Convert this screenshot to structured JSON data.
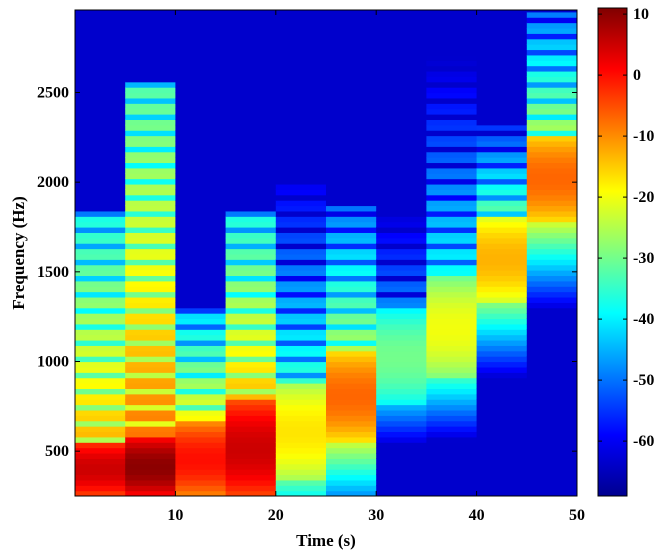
{
  "chart_data": {
    "type": "heatmap",
    "title": "",
    "xlabel": "Time (s)",
    "ylabel": "Frequency (Hz)",
    "xlim": [
      0,
      50
    ],
    "ylim": [
      250,
      2960
    ],
    "x_ticks": [
      "10",
      "20",
      "30",
      "40",
      "50"
    ],
    "x_tick_values": [
      10,
      20,
      30,
      40,
      50
    ],
    "y_ticks": [
      "500",
      "1000",
      "1500",
      "2000",
      "2500"
    ],
    "y_tick_values": [
      500,
      1000,
      1500,
      2000,
      2500
    ],
    "colorbar": {
      "range": [
        -69,
        11
      ],
      "ticks": [
        "10",
        "0",
        "-10",
        "-20",
        "-30",
        "-40",
        "-50",
        "-60"
      ],
      "tick_values": [
        10,
        0,
        -10,
        -20,
        -30,
        -40,
        -50,
        -60
      ],
      "colormap": "jet"
    },
    "background_level_db": -63,
    "segments": [
      {
        "t_start": 0,
        "t_end": 5,
        "hot_band": [
          250,
          560
        ],
        "peak_db": 5,
        "partials_up_to": 1850
      },
      {
        "t_start": 5,
        "t_end": 10,
        "hot_band": [
          250,
          580
        ],
        "peak_db": 10,
        "partials_up_to": 2560
      },
      {
        "t_start": 10,
        "t_end": 15,
        "hot_band": [
          250,
          660
        ],
        "peak_db": 0,
        "partials_up_to": 1300
      },
      {
        "t_start": 15,
        "t_end": 20,
        "hot_band": [
          250,
          780
        ],
        "peak_db": 5,
        "partials_up_to": 1850
      },
      {
        "t_start": 20,
        "t_end": 25,
        "hot_band": [
          330,
          890
        ],
        "peak_db": -17,
        "partials_up_to": 1980
      },
      {
        "t_start": 25,
        "t_end": 30,
        "hot_band": [
          560,
          1060
        ],
        "peak_db": -7,
        "partials_up_to": 1860
      },
      {
        "t_start": 30,
        "t_end": 35,
        "hot_band": [
          750,
          1300
        ],
        "peak_db": -30,
        "partials_up_to": 2220
      },
      {
        "t_start": 35,
        "t_end": 40,
        "hot_band": [
          900,
          1470
        ],
        "peak_db": -20,
        "partials_up_to": 2700
      },
      {
        "t_start": 40,
        "t_end": 45,
        "hot_band": [
          1330,
          1820
        ],
        "peak_db": -13,
        "partials_up_to": 2330
      },
      {
        "t_start": 45,
        "t_end": 50,
        "hot_band": [
          1780,
          2270
        ],
        "peak_db": -7,
        "partials_up_to": 2960
      }
    ]
  }
}
